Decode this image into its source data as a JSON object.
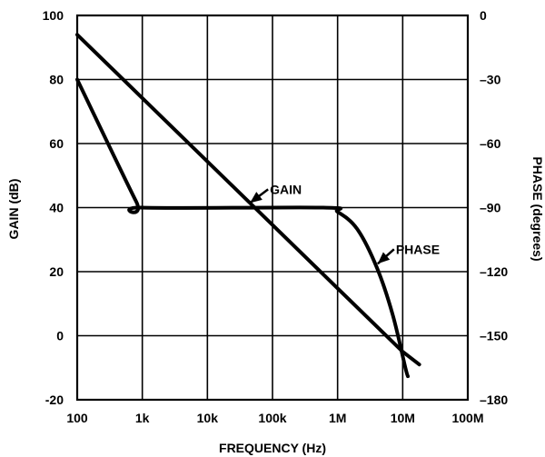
{
  "chart_data": {
    "type": "line",
    "xlabel": "FREQUENCY (Hz)",
    "ylabel_left": "GAIN (dB)",
    "ylabel_right": "PHASE (degrees)",
    "x_scale": "log",
    "xlim": [
      100,
      100000000
    ],
    "ylim_left": [
      -20,
      100
    ],
    "ylim_right": [
      -180,
      0
    ],
    "grid": true,
    "x_ticks": [
      {
        "value": 100,
        "label": "100"
      },
      {
        "value": 1000,
        "label": "1k"
      },
      {
        "value": 10000,
        "label": "10k"
      },
      {
        "value": 100000,
        "label": "100k"
      },
      {
        "value": 1000000,
        "label": "1M"
      },
      {
        "value": 10000000,
        "label": "10M"
      },
      {
        "value": 100000000,
        "label": "100M"
      }
    ],
    "y_ticks_left": [
      {
        "value": 100,
        "label": "100"
      },
      {
        "value": 80,
        "label": "80"
      },
      {
        "value": 60,
        "label": "60"
      },
      {
        "value": 40,
        "label": "40"
      },
      {
        "value": 20,
        "label": "20"
      },
      {
        "value": 0,
        "label": "0"
      },
      {
        "value": -20,
        "label": "-20"
      }
    ],
    "y_ticks_right": [
      {
        "value": 0,
        "label": "0"
      },
      {
        "value": -30,
        "label": "–30"
      },
      {
        "value": -60,
        "label": "–60"
      },
      {
        "value": -90,
        "label": "–90"
      },
      {
        "value": -120,
        "label": "–120"
      },
      {
        "value": -150,
        "label": "–150"
      },
      {
        "value": -180,
        "label": "–180"
      }
    ],
    "series": [
      {
        "name": "GAIN",
        "axis": "left",
        "points": [
          [
            100,
            94
          ],
          [
            10000000,
            -5
          ],
          [
            18000000,
            -9
          ]
        ]
      },
      {
        "name": "PHASE",
        "axis": "right",
        "points": [
          [
            100,
            -30
          ],
          [
            800,
            -87
          ],
          [
            1000,
            -90
          ],
          [
            600000,
            -90
          ],
          [
            1000000,
            -92
          ],
          [
            2000000,
            -100
          ],
          [
            4000000,
            -118
          ],
          [
            7000000,
            -140
          ],
          [
            11000000,
            -165
          ],
          [
            12000000,
            -169
          ]
        ]
      }
    ],
    "annotations": [
      {
        "text": "GAIN",
        "series": "GAIN"
      },
      {
        "text": "PHASE",
        "series": "PHASE"
      }
    ]
  }
}
